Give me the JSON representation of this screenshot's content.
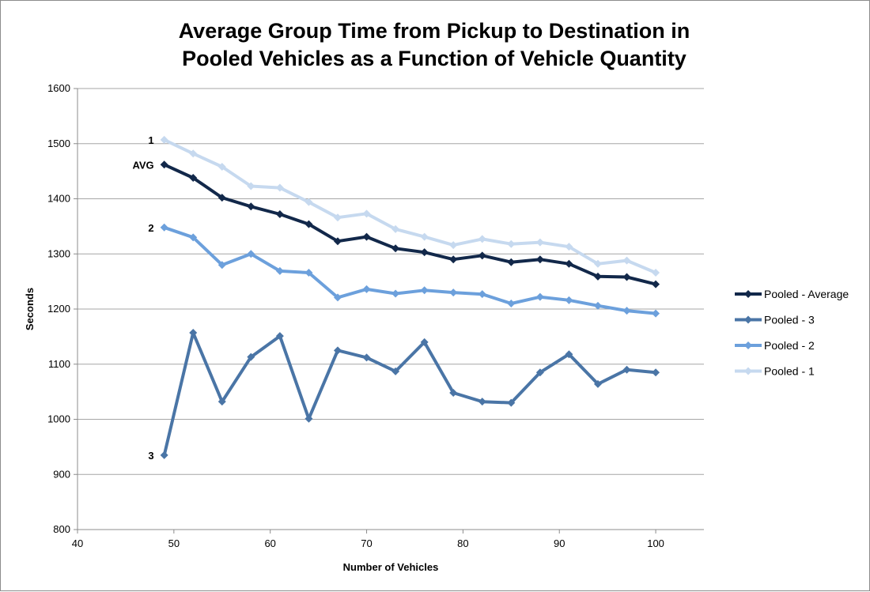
{
  "chart_data": {
    "type": "line",
    "title_lines": [
      "Average Group Time from Pickup to Destination in",
      "Pooled Vehicles as a Function of Vehicle Quantity"
    ],
    "xlabel": "Number of Vehicles",
    "ylabel": "Seconds",
    "xlim": [
      40,
      105
    ],
    "ylim": [
      800,
      1600
    ],
    "x_ticks": [
      40,
      50,
      60,
      70,
      80,
      90,
      100
    ],
    "y_ticks": [
      800,
      900,
      1000,
      1100,
      1200,
      1300,
      1400,
      1500,
      1600
    ],
    "grid": "horizontal",
    "legend_position": "right",
    "x": [
      49,
      52,
      55,
      58,
      61,
      64,
      67,
      70,
      73,
      76,
      79,
      82,
      85,
      88,
      91,
      94,
      97,
      100
    ],
    "series": [
      {
        "name": "Pooled - 1",
        "color": "#c6d9ef",
        "values": [
          1507,
          1482,
          1458,
          1423,
          1420,
          1394,
          1366,
          1373,
          1345,
          1331,
          1316,
          1327,
          1318,
          1321,
          1313,
          1282,
          1288,
          1266
        ]
      },
      {
        "name": "Pooled - 2",
        "color": "#6ca0dc",
        "values": [
          1348,
          1330,
          1280,
          1300,
          1269,
          1266,
          1221,
          1236,
          1228,
          1234,
          1230,
          1227,
          1210,
          1222,
          1216,
          1206,
          1197,
          1192
        ]
      },
      {
        "name": "Pooled - 3",
        "color": "#4a75a6",
        "values": [
          935,
          1157,
          1032,
          1113,
          1151,
          1001,
          1125,
          1112,
          1087,
          1140,
          1048,
          1032,
          1030,
          1085,
          1118,
          1064,
          1090,
          1085
        ]
      },
      {
        "name": "Pooled - Average",
        "color": "#12284a",
        "values": [
          1462,
          1438,
          1402,
          1386,
          1372,
          1354,
          1323,
          1331,
          1310,
          1303,
          1290,
          1297,
          1285,
          1290,
          1282,
          1259,
          1258,
          1245
        ]
      }
    ],
    "legend_order": [
      "Pooled - Average",
      "Pooled - 3",
      "Pooled - 2",
      "Pooled - 1"
    ],
    "annotations": [
      {
        "text": "1",
        "series": "Pooled - 1"
      },
      {
        "text": "AVG",
        "series": "Pooled - Average"
      },
      {
        "text": "2",
        "series": "Pooled - 2"
      },
      {
        "text": "3",
        "series": "Pooled - 3"
      }
    ]
  }
}
